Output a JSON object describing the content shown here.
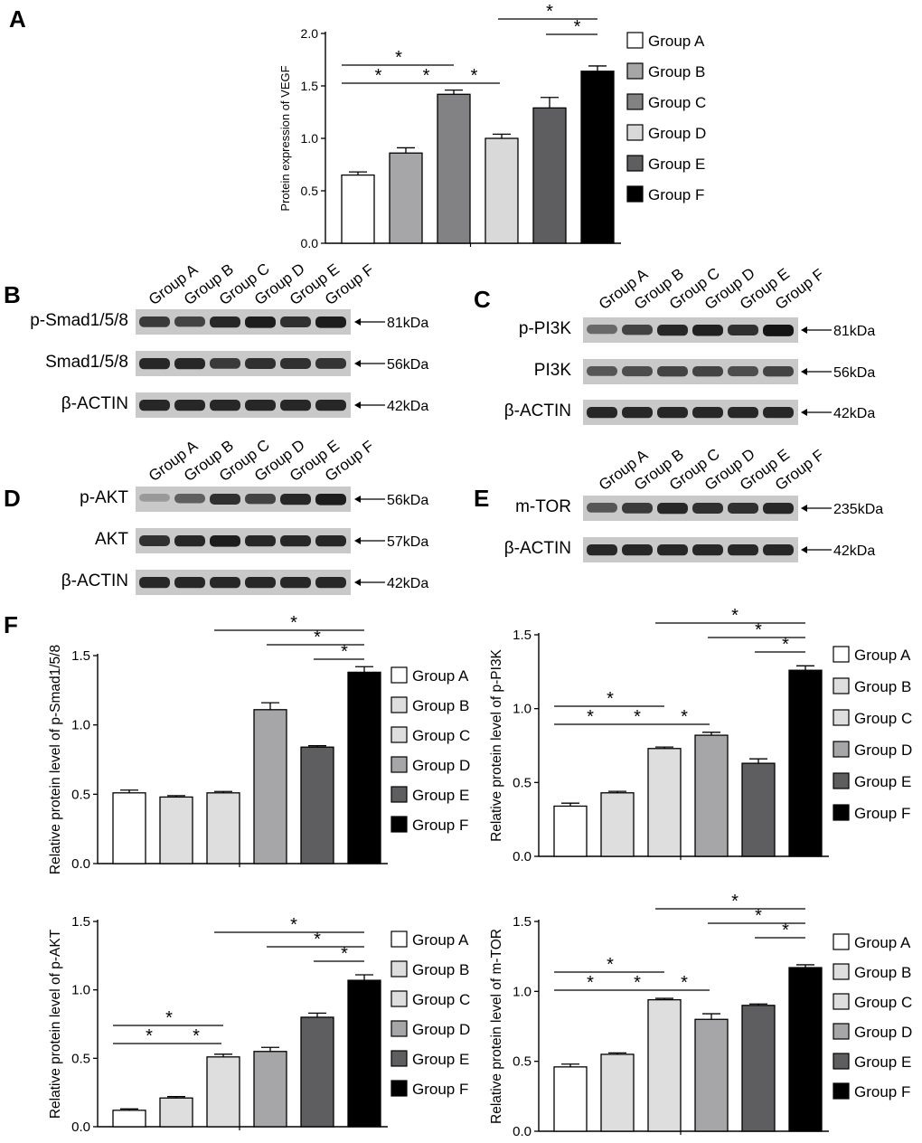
{
  "panel_labels": {
    "A": "A",
    "B": "B",
    "C": "C",
    "D": "D",
    "E": "E",
    "F": "F"
  },
  "groups": [
    "Group A",
    "Group B",
    "Group C",
    "Group D",
    "Group E",
    "Group F"
  ],
  "legend_colors_a": [
    "#ffffff",
    "#a6a6a8",
    "#828284",
    "#d9d9d9",
    "#5e5e60",
    "#000000"
  ],
  "legend_colors_f": [
    "#ffffff",
    "#dedede",
    "#dedede",
    "#a6a6a8",
    "#5e5e60",
    "#000000"
  ],
  "significance_symbol": "*",
  "blots": {
    "B": {
      "rows": [
        {
          "label": "p-Smad1/5/8",
          "marker": "81kDa"
        },
        {
          "label": "Smad1/5/8",
          "marker": "56kDa"
        },
        {
          "label": "β-ACTIN",
          "marker": "42kDa"
        }
      ]
    },
    "C": {
      "rows": [
        {
          "label": "p-PI3K",
          "marker": "81kDa"
        },
        {
          "label": "PI3K",
          "marker": "56kDa"
        },
        {
          "label": "β-ACTIN",
          "marker": "42kDa"
        }
      ]
    },
    "D": {
      "rows": [
        {
          "label": "p-AKT",
          "marker": "56kDa"
        },
        {
          "label": "AKT",
          "marker": "57kDa"
        },
        {
          "label": "β-ACTIN",
          "marker": "42kDa"
        }
      ]
    },
    "E": {
      "rows": [
        {
          "label": "m-TOR",
          "marker": "235kDa"
        },
        {
          "label": "β-ACTIN",
          "marker": "42kDa"
        }
      ]
    }
  },
  "chart_data": [
    {
      "id": "A",
      "type": "bar",
      "ylabel": "Protein expression of VEGF",
      "categories": [
        "Group A",
        "Group B",
        "Group C",
        "Group D",
        "Group E",
        "Group F"
      ],
      "values": [
        0.65,
        0.86,
        1.42,
        1.0,
        1.29,
        1.64
      ],
      "errors": [
        0.03,
        0.05,
        0.04,
        0.04,
        0.1,
        0.05
      ],
      "ylim": [
        0,
        2.0
      ],
      "ticks": [
        "0.0",
        "0.5",
        "1.0",
        "1.5",
        "2.0"
      ],
      "significance": [
        [
          0,
          2
        ],
        [
          0,
          1
        ],
        [
          1,
          2
        ],
        [
          2,
          3
        ],
        [
          3,
          5
        ],
        [
          4,
          5
        ],
        [
          5,
          5
        ]
      ]
    },
    {
      "id": "F1",
      "type": "bar",
      "ylabel": "Relative protein level of p-Smad1/5/8",
      "categories": [
        "Group A",
        "Group B",
        "Group C",
        "Group D",
        "Group E",
        "Group F"
      ],
      "values": [
        0.51,
        0.48,
        0.51,
        1.11,
        0.84,
        1.38
      ],
      "errors": [
        0.02,
        0.01,
        0.01,
        0.05,
        0.01,
        0.04
      ],
      "ylim": [
        0,
        1.5
      ],
      "ticks": [
        "0.0",
        "0.5",
        "1.0",
        "1.5"
      ],
      "significance": [
        [
          2,
          5
        ],
        [
          3,
          5
        ],
        [
          4,
          5
        ]
      ]
    },
    {
      "id": "F2",
      "type": "bar",
      "ylabel": "Relative protein level of p-PI3K",
      "categories": [
        "Group A",
        "Group B",
        "Group C",
        "Group D",
        "Group E",
        "Group F"
      ],
      "values": [
        0.34,
        0.43,
        0.73,
        0.82,
        0.63,
        1.26
      ],
      "errors": [
        0.02,
        0.01,
        0.01,
        0.02,
        0.03,
        0.03
      ],
      "ylim": [
        0,
        1.5
      ],
      "ticks": [
        "0.0",
        "0.5",
        "1.0",
        "1.5"
      ],
      "significance": [
        [
          0,
          2
        ],
        [
          0,
          1
        ],
        [
          1,
          2
        ],
        [
          2,
          3
        ],
        [
          2,
          5
        ],
        [
          3,
          5
        ],
        [
          4,
          5
        ]
      ]
    },
    {
      "id": "F3",
      "type": "bar",
      "ylabel": "Relative protein level of p-AKT",
      "categories": [
        "Group A",
        "Group B",
        "Group C",
        "Group D",
        "Group E",
        "Group F"
      ],
      "values": [
        0.12,
        0.21,
        0.51,
        0.55,
        0.8,
        1.07
      ],
      "errors": [
        0.01,
        0.01,
        0.02,
        0.03,
        0.03,
        0.04
      ],
      "ylim": [
        0,
        1.5
      ],
      "ticks": [
        "0.0",
        "0.5",
        "1.0",
        "1.5"
      ],
      "significance": [
        [
          0,
          2
        ],
        [
          0,
          1
        ],
        [
          1,
          2
        ],
        [
          2,
          5
        ],
        [
          3,
          5
        ],
        [
          4,
          5
        ]
      ]
    },
    {
      "id": "F4",
      "type": "bar",
      "ylabel": "Relative protein level of m-TOR",
      "categories": [
        "Group A",
        "Group B",
        "Group C",
        "Group D",
        "Group E",
        "Group F"
      ],
      "values": [
        0.46,
        0.55,
        0.94,
        0.8,
        0.9,
        1.17
      ],
      "errors": [
        0.02,
        0.01,
        0.01,
        0.04,
        0.01,
        0.02
      ],
      "ylim": [
        0,
        1.5
      ],
      "ticks": [
        "0.0",
        "0.5",
        "1.0",
        "1.5"
      ],
      "significance": [
        [
          0,
          2
        ],
        [
          0,
          1
        ],
        [
          1,
          2
        ],
        [
          2,
          3
        ],
        [
          2,
          5
        ],
        [
          3,
          5
        ],
        [
          4,
          5
        ]
      ]
    }
  ]
}
